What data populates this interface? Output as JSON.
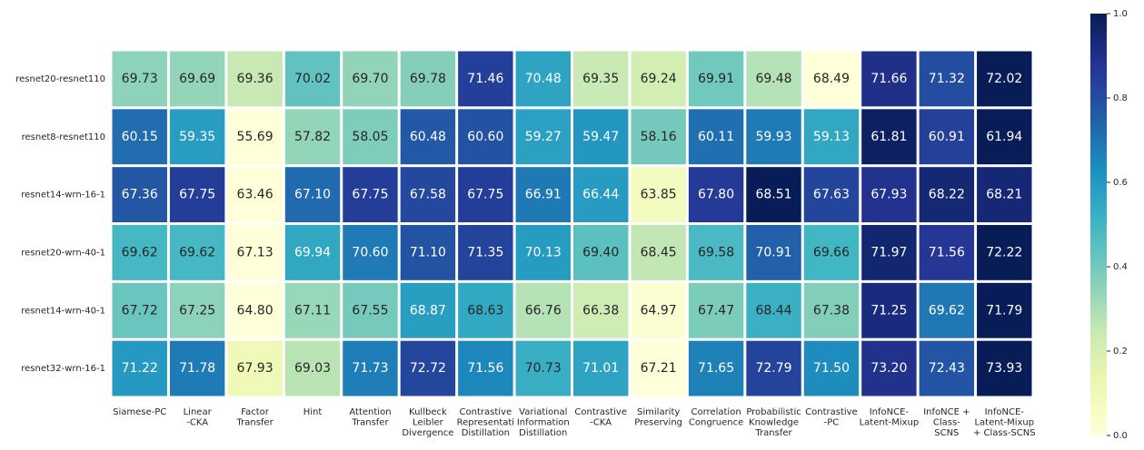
{
  "chart_data": {
    "type": "heatmap",
    "categories": [
      [
        "Siamese-PC"
      ],
      [
        "Linear",
        "-CKA"
      ],
      [
        "Factor",
        "Transfer"
      ],
      [
        "Hint"
      ],
      [
        "Attention",
        "Transfer"
      ],
      [
        "Kullbeck",
        "Leibler",
        "Divergence"
      ],
      [
        "Contrastive",
        "Representati",
        "Distillation"
      ],
      [
        "Variational",
        "Information",
        "Distillation"
      ],
      [
        "Contrastive",
        "-CKA"
      ],
      [
        "Similarity",
        "Preserving"
      ],
      [
        "Correlation",
        "Congruence"
      ],
      [
        "Probabilistic",
        "Knowledge",
        "Transfer"
      ],
      [
        "Contrastive",
        "-PC"
      ],
      [
        "InfoNCE-",
        "Latent-Mixup"
      ],
      [
        "InfoNCE +",
        "Class-",
        "SCNS"
      ],
      [
        "InfoNCE-",
        "Latent-Mixup",
        "+ Class-SCNS"
      ]
    ],
    "rows": [
      {
        "name": "resnet20-resnet110",
        "values": [
          69.73,
          69.69,
          69.36,
          70.02,
          69.7,
          69.78,
          71.46,
          70.48,
          69.35,
          69.24,
          69.91,
          69.48,
          68.49,
          71.66,
          71.32,
          72.02
        ],
        "value_labels": [
          "69.73",
          "69.69",
          "69.36",
          "70.02",
          "69.70",
          "69.78",
          "71.46",
          "70.48",
          "69.35",
          "69.24",
          "69.91",
          "69.48",
          "68.49",
          "71.66",
          "71.32",
          "72.02"
        ]
      },
      {
        "name": "resnet8-resnet110",
        "values": [
          60.15,
          59.35,
          55.69,
          57.82,
          58.05,
          60.48,
          60.6,
          59.27,
          59.47,
          58.16,
          60.11,
          59.93,
          59.13,
          61.81,
          60.91,
          61.94
        ],
        "value_labels": [
          "60.15",
          "59.35",
          "55.69",
          "57.82",
          "58.05",
          "60.48",
          "60.60",
          "59.27",
          "59.47",
          "58.16",
          "60.11",
          "59.93",
          "59.13",
          "61.81",
          "60.91",
          "61.94"
        ]
      },
      {
        "name": "resnet14-wrn-16-1",
        "values": [
          67.36,
          67.75,
          63.46,
          67.1,
          67.75,
          67.58,
          67.75,
          66.91,
          66.44,
          63.85,
          67.8,
          68.51,
          67.63,
          67.93,
          68.22,
          68.21
        ],
        "value_labels": [
          "67.36",
          "67.75",
          "63.46",
          "67.10",
          "67.75",
          "67.58",
          "67.75",
          "66.91",
          "66.44",
          "63.85",
          "67.80",
          "68.51",
          "67.63",
          "67.93",
          "68.22",
          "68.21"
        ]
      },
      {
        "name": "resnet20-wrn-40-1",
        "values": [
          69.62,
          69.62,
          67.13,
          69.94,
          70.6,
          71.1,
          71.35,
          70.13,
          69.4,
          68.45,
          69.58,
          70.91,
          69.66,
          71.97,
          71.56,
          72.22
        ],
        "value_labels": [
          "69.62",
          "69.62",
          "67.13",
          "69.94",
          "70.60",
          "71.10",
          "71.35",
          "70.13",
          "69.40",
          "68.45",
          "69.58",
          "70.91",
          "69.66",
          "71.97",
          "71.56",
          "72.22"
        ]
      },
      {
        "name": "resnet14-wrn-40-1",
        "values": [
          67.72,
          67.25,
          64.8,
          67.11,
          67.55,
          68.87,
          68.63,
          66.76,
          66.38,
          64.97,
          67.47,
          68.44,
          67.38,
          71.25,
          69.62,
          71.79
        ],
        "value_labels": [
          "67.72",
          "67.25",
          "64.80",
          "67.11",
          "67.55",
          "68.87",
          "68.63",
          "66.76",
          "66.38",
          "64.97",
          "67.47",
          "68.44",
          "67.38",
          "71.25",
          "69.62",
          "71.79"
        ]
      },
      {
        "name": "resnet32-wrn-16-1",
        "values": [
          71.22,
          71.78,
          67.93,
          69.03,
          71.73,
          72.72,
          71.56,
          70.73,
          71.01,
          67.21,
          71.65,
          72.79,
          71.5,
          73.2,
          72.43,
          73.93
        ],
        "value_labels": [
          "71.22",
          "71.78",
          "67.93",
          "69.03",
          "71.73",
          "72.72",
          "71.56",
          "70.73",
          "71.01",
          "67.21",
          "71.65",
          "72.79",
          "71.50",
          "73.20",
          "72.43",
          "73.93"
        ]
      }
    ],
    "colors": [
      "#ffffd9",
      "#edf8b1",
      "#c7e9b4",
      "#7fcdbb",
      "#41b6c4",
      "#1d91c0",
      "#225ea8",
      "#253494",
      "#081d58"
    ],
    "colorbar": {
      "ylim": [
        0,
        1
      ],
      "yticks": [
        {
          "value": 0,
          "label": "0.0"
        },
        {
          "value": 0.2,
          "label": "0.2"
        },
        {
          "value": 0.4,
          "label": "0.4"
        },
        {
          "value": 0.6,
          "label": "0.6"
        },
        {
          "value": 0.8,
          "label": "0.8"
        },
        {
          "value": 1,
          "label": "1.0"
        }
      ]
    }
  }
}
